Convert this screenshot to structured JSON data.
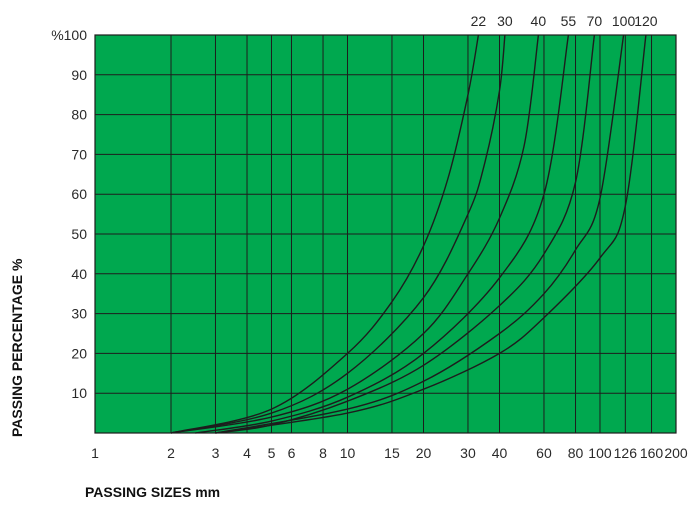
{
  "chart_data": {
    "type": "line",
    "title": "",
    "xlabel": "PASSING SIZES mm",
    "ylabel": "PASSING PERCENTAGE %",
    "x_scale": "log",
    "x_ticks": [
      1,
      2,
      3,
      4,
      5,
      6,
      8,
      10,
      15,
      20,
      30,
      40,
      60,
      80,
      100,
      126,
      160,
      200
    ],
    "x_tick_labels": [
      "1",
      "2",
      "3",
      "4",
      "5",
      "6",
      "8",
      "10",
      "15",
      "20",
      "30",
      "40",
      "60",
      "80",
      "100",
      "126",
      "160",
      "200"
    ],
    "y_ticks": [
      10,
      20,
      30,
      40,
      50,
      60,
      70,
      80,
      90,
      100
    ],
    "y_tick_labels": [
      "10",
      "20",
      "30",
      "40",
      "50",
      "60",
      "70",
      "80",
      "90",
      "%100"
    ],
    "ylim": [
      0,
      100
    ],
    "xlim": [
      1,
      200
    ],
    "grid": true,
    "plot_background": "#00a84f",
    "curve_color": "#1d1d1d",
    "series": [
      {
        "name": "22",
        "x": [
          2,
          5,
          10,
          15,
          20,
          25,
          30,
          33
        ],
        "y": [
          0,
          6,
          20,
          33,
          47,
          64,
          85,
          100
        ]
      },
      {
        "name": "30",
        "x": [
          2,
          5,
          10,
          20,
          30,
          35,
          40,
          42
        ],
        "y": [
          0,
          5,
          15,
          34,
          55,
          68,
          86,
          100
        ]
      },
      {
        "name": "40",
        "x": [
          2,
          5,
          10,
          20,
          30,
          40,
          50,
          57
        ],
        "y": [
          0,
          4,
          11,
          25,
          40,
          54,
          72,
          100
        ]
      },
      {
        "name": "55",
        "x": [
          2.5,
          5,
          10,
          20,
          40,
          60,
          75
        ],
        "y": [
          0,
          3,
          9,
          20,
          39,
          60,
          100
        ]
      },
      {
        "name": "70",
        "x": [
          3,
          5,
          10,
          20,
          40,
          60,
          80,
          95
        ],
        "y": [
          0,
          2,
          8,
          17,
          32,
          45,
          63,
          100
        ]
      },
      {
        "name": "100",
        "x": [
          3,
          10,
          20,
          40,
          60,
          80,
          100,
          124
        ],
        "y": [
          0,
          6,
          13,
          25,
          35,
          46,
          59,
          100
        ]
      },
      {
        "name": "120",
        "x": [
          3,
          10,
          20,
          40,
          60,
          100,
          126,
          152
        ],
        "y": [
          0,
          5,
          11,
          20,
          29,
          44,
          57,
          100
        ]
      }
    ]
  }
}
